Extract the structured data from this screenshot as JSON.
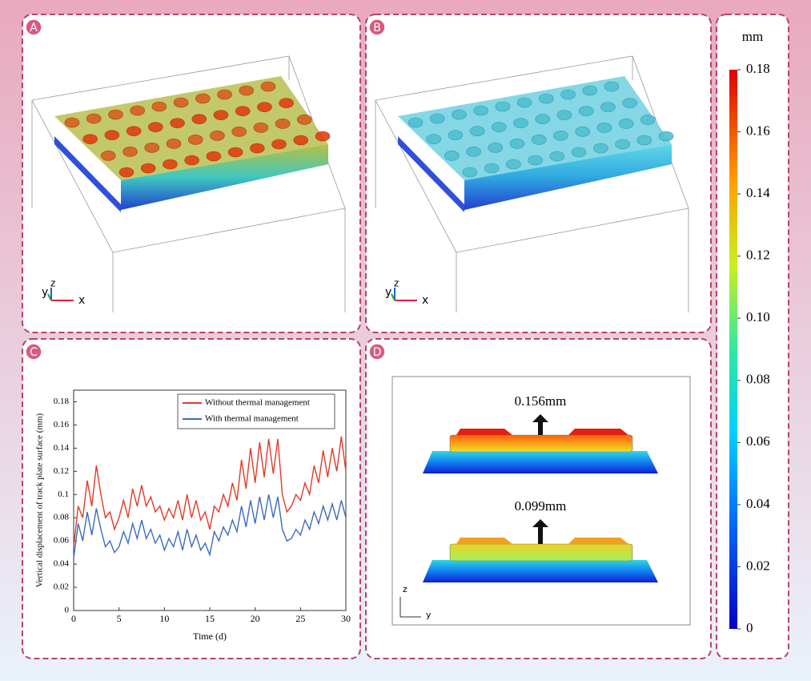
{
  "panels": [
    {
      "label": "A",
      "axes": [
        "y",
        "z",
        "x"
      ]
    },
    {
      "label": "B",
      "axes": [
        "y",
        "z",
        "x"
      ]
    },
    {
      "label": "C"
    },
    {
      "label": "D",
      "axes": [
        "z",
        "y"
      ],
      "annotations": [
        "0.156mm",
        "0.099mm"
      ]
    }
  ],
  "colorbar": {
    "title": "mm",
    "lim": [
      0,
      0.18
    ],
    "ticks": [
      0,
      0.02,
      0.04,
      0.06,
      0.08,
      {
        "value": 0.1,
        "label": "0.10"
      },
      0.12,
      0.14,
      0.16,
      0.18
    ]
  },
  "chart_data": {
    "type": "line",
    "x_label": "Time (d)",
    "y_label": "Vertical displacement of track plate surface (mm)",
    "x": [
      0,
      0.5,
      1,
      1.5,
      2,
      2.5,
      3,
      3.5,
      4,
      4.5,
      5,
      5.5,
      6,
      6.5,
      7,
      7.5,
      8,
      8.5,
      9,
      9.5,
      10,
      10.5,
      11,
      11.5,
      12,
      12.5,
      13,
      13.5,
      14,
      14.5,
      15,
      15.5,
      16,
      16.5,
      17,
      17.5,
      18,
      18.5,
      19,
      19.5,
      20,
      20.5,
      21,
      21.5,
      22,
      22.5,
      23,
      23.5,
      24,
      24.5,
      25,
      25.5,
      26,
      26.5,
      27,
      27.5,
      28,
      28.5,
      29,
      29.5,
      30
    ],
    "series": [
      {
        "name": "Without thermal management",
        "color": "#e03a2a",
        "values": [
          0.055,
          0.09,
          0.08,
          0.112,
          0.09,
          0.125,
          0.1,
          0.08,
          0.085,
          0.07,
          0.08,
          0.095,
          0.08,
          0.105,
          0.09,
          0.108,
          0.09,
          0.098,
          0.085,
          0.09,
          0.078,
          0.088,
          0.08,
          0.095,
          0.078,
          0.1,
          0.08,
          0.095,
          0.078,
          0.085,
          0.07,
          0.09,
          0.085,
          0.1,
          0.09,
          0.11,
          0.095,
          0.13,
          0.105,
          0.14,
          0.11,
          0.145,
          0.115,
          0.148,
          0.118,
          0.148,
          0.1,
          0.085,
          0.09,
          0.1,
          0.095,
          0.11,
          0.1,
          0.125,
          0.11,
          0.138,
          0.115,
          0.14,
          0.12,
          0.15,
          0.12
        ]
      },
      {
        "name": "With thermal management",
        "color": "#3a6cc0",
        "values": [
          0.045,
          0.075,
          0.06,
          0.085,
          0.065,
          0.088,
          0.07,
          0.055,
          0.06,
          0.05,
          0.055,
          0.068,
          0.058,
          0.075,
          0.062,
          0.078,
          0.062,
          0.07,
          0.058,
          0.065,
          0.052,
          0.062,
          0.055,
          0.068,
          0.052,
          0.07,
          0.055,
          0.065,
          0.052,
          0.058,
          0.048,
          0.068,
          0.06,
          0.072,
          0.065,
          0.078,
          0.068,
          0.09,
          0.072,
          0.095,
          0.075,
          0.098,
          0.078,
          0.1,
          0.08,
          0.098,
          0.07,
          0.06,
          0.062,
          0.07,
          0.065,
          0.078,
          0.07,
          0.085,
          0.075,
          0.09,
          0.078,
          0.092,
          0.078,
          0.095,
          0.08
        ]
      }
    ],
    "xlim": [
      0,
      30
    ],
    "xticks": [
      0,
      5,
      10,
      15,
      20,
      25,
      30
    ],
    "ylim": [
      0,
      0.19
    ],
    "yticks": [
      0,
      0.02,
      0.04,
      0.06,
      0.08,
      0.1,
      0.12,
      0.14,
      0.16,
      0.18
    ],
    "legend": "top-right"
  }
}
